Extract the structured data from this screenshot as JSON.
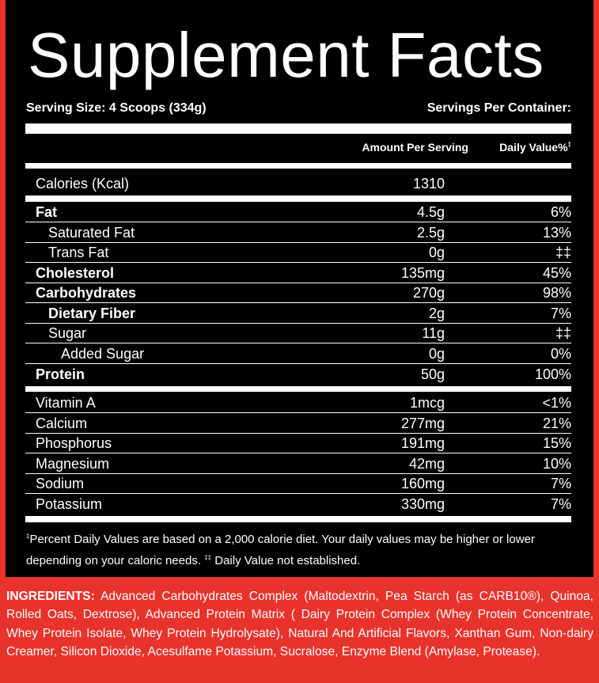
{
  "title": "Supplement Facts",
  "serving_size": "Serving Size: 4 Scoops (334g)",
  "servings_per_container": "Servings Per Container:",
  "columns": {
    "amount": "Amount Per Serving",
    "daily_value": "Daily Value%",
    "daily_value_mark": "‡"
  },
  "calories": {
    "name": "Calories (Kcal)",
    "amount": "1310",
    "dv": ""
  },
  "macros": [
    {
      "name": "Fat",
      "amount": "4.5g",
      "dv": "6%"
    },
    {
      "name": "Saturated Fat",
      "amount": "2.5g",
      "dv": "13%"
    },
    {
      "name": "Trans Fat",
      "amount": "0g",
      "dv": "‡‡"
    },
    {
      "name": "Cholesterol",
      "amount": "135mg",
      "dv": "45%"
    },
    {
      "name": "Carbohydrates",
      "amount": "270g",
      "dv": "98%"
    },
    {
      "name": "Dietary Fiber",
      "amount": "2g",
      "dv": "7%"
    },
    {
      "name": "Sugar",
      "amount": "11g",
      "dv": "‡‡"
    },
    {
      "name": "Added Sugar",
      "amount": "0g",
      "dv": "0%"
    },
    {
      "name": "Protein",
      "amount": "50g",
      "dv": "100%"
    }
  ],
  "minerals": [
    {
      "name": "Vitamin A",
      "amount": "1mcg",
      "dv": "<1%"
    },
    {
      "name": "Calcium",
      "amount": "277mg",
      "dv": "21%"
    },
    {
      "name": "Phosphorus",
      "amount": "191mg",
      "dv": "15%"
    },
    {
      "name": "Magnesium",
      "amount": "42mg",
      "dv": "10%"
    },
    {
      "name": "Sodium",
      "amount": "160mg",
      "dv": "7%"
    },
    {
      "name": "Potassium",
      "amount": "330mg",
      "dv": "7%"
    }
  ],
  "footnote": {
    "mark": "‡",
    "text": "Percent Daily Values are based on a 2,000 calorie diet. Your daily values may be higher or lower depending on your caloric needs.",
    "mark2": "‡‡",
    "text2": " Daily Value not established."
  },
  "ingredients": {
    "label": "INGREDIENTS:",
    "text": "Advanced Carbohydrates Complex (Maltodextrin, Pea Starch (as CARB10®), Quinoa, Rolled Oats, Dextrose), Advanced Protein Matrix ( Dairy Protein Complex (Whey Protein Concentrate, Whey Protein Isolate, Whey Protein Hydrolysate), Natural And Artificial Flavors, Xanthan Gum, Non-dairy Creamer, Silicon Dioxide, Acesulfame Potassium, Sucralose, Enzyme Blend (Amylase, Protease)."
  },
  "colors": {
    "background": "#e8322c",
    "panel": "#000000",
    "text": "#ffffff"
  }
}
